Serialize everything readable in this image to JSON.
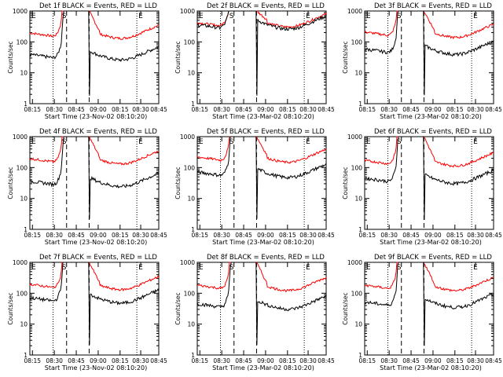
{
  "chart_data": {
    "type": "line",
    "ylabel": "Counts/sec",
    "xlabel": "Start Time (23-Nov-02 08:10:20)",
    "xlabel_alt": "Start Time (23-Mar-02 08:10:20)",
    "x_ticks": [
      "08:15",
      "08:30",
      "08:45",
      "09:00",
      "08:15",
      "08:30",
      "08:45"
    ],
    "x_ticks_alt": [
      "08:15",
      "08:30",
      "08:45",
      "09:00",
      "08:15",
      "08:30",
      "08:45"
    ],
    "y_ticks": [
      "1",
      "10",
      "100",
      "1000"
    ],
    "ylim": [
      1,
      1000
    ],
    "y_scale": "log",
    "legend": "BLACK = Events, RED = LLD",
    "markers": {
      "s": "S",
      "e": "E"
    },
    "colors": {
      "events": "#000000",
      "lld": "#ff0000"
    },
    "panels": [
      {
        "title": "Det 1f BLACK = Events, RED = LLD",
        "xlabel_key": "xlabel",
        "events_level": 30,
        "lld_level": 150,
        "flat": false
      },
      {
        "title": "Det 2f BLACK = Events, RED = LLD",
        "xlabel_key": "xlabel_alt",
        "events_level": 300,
        "lld_level": 350,
        "flat": true
      },
      {
        "title": "Det 3f BLACK = Events, RED = LLD",
        "xlabel_key": "xlabel_alt",
        "events_level": 45,
        "lld_level": 160,
        "flat": false
      },
      {
        "title": "Det 4f BLACK = Events, RED = LLD",
        "xlabel_key": "xlabel",
        "events_level": 28,
        "lld_level": 150,
        "flat": false
      },
      {
        "title": "Det 5f BLACK = Events, RED = LLD",
        "xlabel_key": "xlabel_alt",
        "events_level": 55,
        "lld_level": 170,
        "flat": false
      },
      {
        "title": "Det 6f BLACK = Events, RED = LLD",
        "xlabel_key": "xlabel_alt",
        "events_level": 35,
        "lld_level": 130,
        "flat": false
      },
      {
        "title": "Det 7f BLACK = Events, RED = LLD",
        "xlabel_key": "xlabel",
        "events_level": 55,
        "lld_level": 150,
        "flat": false
      },
      {
        "title": "Det 8f BLACK = Events, RED = LLD",
        "xlabel_key": "xlabel_alt",
        "events_level": 35,
        "lld_level": 140,
        "flat": false
      },
      {
        "title": "Det 9f BLACK = Events, RED = LLD",
        "xlabel_key": "xlabel_alt",
        "events_level": 40,
        "lld_level": 140,
        "flat": false
      }
    ]
  }
}
